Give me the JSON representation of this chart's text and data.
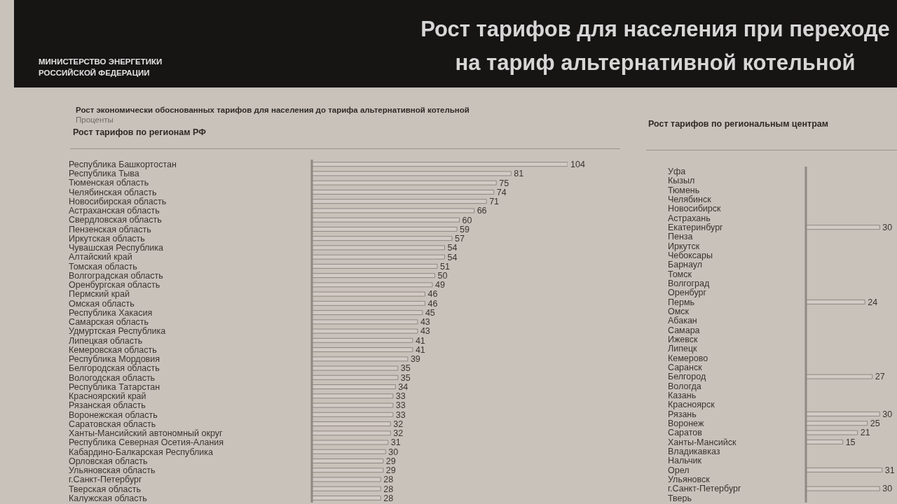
{
  "chart_data": [
    {
      "type": "other",
      "title": "Рост тарифов для населения при переходе на тариф альтернативной котельной",
      "subtitle": "Рост экономически обоснованных тарифов для населения до тарифа альтернативной котельной",
      "annotations": [
        "МИНИСТЕРСТВО ЭНЕРГЕТИКИ РОССИЙСКОЙ ФЕДЕРАЦИИ",
        "Проценты"
      ]
    },
    {
      "type": "bar",
      "orientation": "horizontal",
      "title": "Рост тарифов по регионам РФ",
      "categories": [
        "Республика Башкортостан",
        "Республика Тыва",
        "Тюменская область",
        "Челябинская область",
        "Новосибирская область",
        "Астраханская область",
        "Свердловская область",
        "Пензенская область",
        "Иркутская область",
        "Чувашская Республика",
        "Алтайский край",
        "Томская область",
        "Волгоградская область",
        "Оренбургская область",
        "Пермский край",
        "Омская область",
        "Республика Хакасия",
        "Самарская область",
        "Удмуртская Республика",
        "Липецкая область",
        "Кемеровская область",
        "Республика Мордовия",
        "Белгородская область",
        "Вологодская область",
        "Республика Татарстан",
        "Красноярский край",
        "Рязанская область",
        "Воронежская область",
        "Саратовская область",
        "Ханты-Мансийский автономный округ",
        "Республика Северная Осетия-Алания",
        "Кабардино-Балкарская Республика",
        "Орловская область",
        "Ульяновская область",
        "г.Санкт-Петербург",
        "Тверская область",
        "Калужская область"
      ],
      "values": [
        104,
        81,
        75,
        74,
        71,
        66,
        60,
        59,
        57,
        54,
        54,
        51,
        50,
        49,
        46,
        46,
        45,
        43,
        43,
        41,
        41,
        39,
        35,
        35,
        34,
        33,
        33,
        33,
        32,
        32,
        31,
        30,
        29,
        29,
        28,
        28,
        28
      ],
      "color": "#d2cbc5",
      "data_labels": true,
      "tick_labels": "y"
    },
    {
      "type": "bar",
      "orientation": "horizontal",
      "title": "Рост тарифов по региональным центрам",
      "categories": [
        "Уфа",
        "Кызыл",
        "Тюмень",
        "Челябинск",
        "Новосибирск",
        "Астрахань",
        "Екатеринбург",
        "Пенза",
        "Иркутск",
        "Чебоксары",
        "Барнаул",
        "Томск",
        "Волгоград",
        "Оренбург",
        "Пермь",
        "Омск",
        "Абакан",
        "Самара",
        "Ижевск",
        "Липецк",
        "Кемерово",
        "Саранск",
        "Белгород",
        "Вологда",
        "Казань",
        "Красноярск",
        "Рязань",
        "Воронеж",
        "Саратов",
        "Ханты-Мансийск",
        "Владикавказ",
        "Нальчик",
        "Орел",
        "Ульяновск",
        "г.Санкт-Петербург",
        "Тверь"
      ],
      "values": [
        null,
        null,
        null,
        null,
        null,
        null,
        30,
        null,
        null,
        null,
        null,
        null,
        null,
        null,
        24,
        null,
        null,
        null,
        null,
        null,
        null,
        null,
        27,
        null,
        null,
        null,
        30,
        25,
        21,
        15,
        null,
        null,
        31,
        null,
        30,
        null
      ],
      "color": "#d2cbc5",
      "data_labels": true,
      "tick_labels": "y"
    }
  ]
}
